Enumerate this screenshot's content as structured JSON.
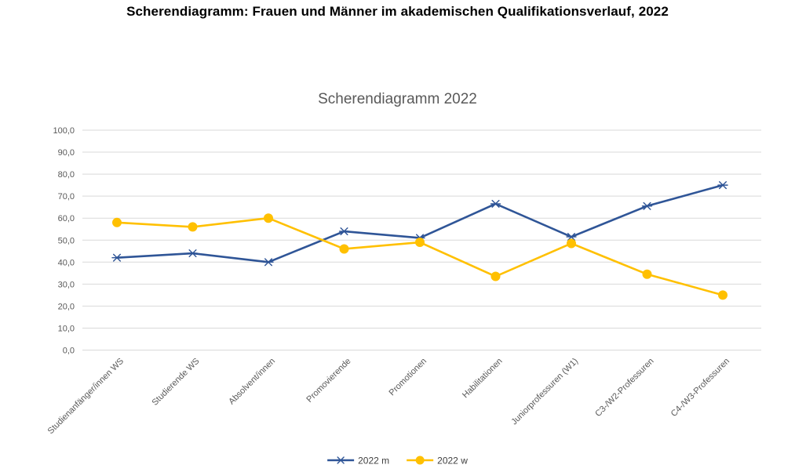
{
  "page": {
    "title": "Scherendiagramm: Frauen und Männer im akademischen Qualifikationsverlauf, 2022"
  },
  "chart_data": {
    "type": "line",
    "title": "Scherendiagramm 2022",
    "categories": [
      "Studienanfänger/innen WS",
      "Studierende WS",
      "Absolvent/innen",
      "Promovierende",
      "Promotionen",
      "Habilitationen",
      "Juniorprofessuren (W1)",
      "C3-/W2-Professuren",
      "C4-/W3-Professuren"
    ],
    "series": [
      {
        "name": "2022 m",
        "color": "#2F5597",
        "marker": "asterisk",
        "values": [
          42,
          44,
          40,
          54,
          51,
          66.5,
          51.5,
          65.5,
          75
        ]
      },
      {
        "name": "2022 w",
        "color": "#FFC000",
        "marker": "circle",
        "values": [
          58,
          56,
          60,
          46,
          49,
          33.5,
          48.5,
          34.5,
          25
        ]
      }
    ],
    "ylim": [
      0,
      100
    ],
    "ytick_step": 10,
    "ytick_labels": [
      "0,0",
      "10,0",
      "20,0",
      "30,0",
      "40,0",
      "50,0",
      "60,0",
      "70,0",
      "80,0",
      "90,0",
      "100,0"
    ],
    "decimal_separator": ",",
    "grid": "horizontal",
    "legend_position": "bottom",
    "colors": {
      "gridline": "#D9D9D9",
      "axis_text": "#595959",
      "chart_title_text": "#595959",
      "legend_text": "#404040",
      "background": "#FFFFFF"
    }
  }
}
